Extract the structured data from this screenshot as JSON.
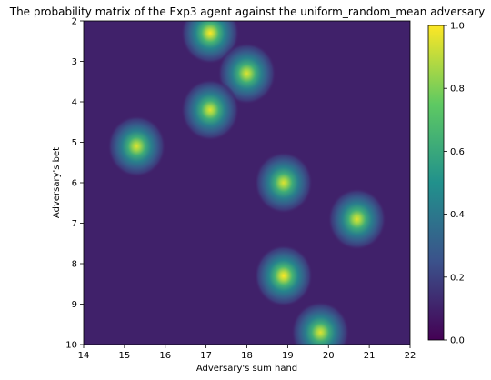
{
  "chart_data": {
    "type": "heatmap",
    "title": "The probability matrix of the Exp3 agent against the uniform_random_mean adversary",
    "xlabel": "Adversary's sum hand",
    "ylabel": "Adversary's bet",
    "xlim": [
      14,
      22
    ],
    "ylim": [
      10,
      2
    ],
    "x_ticks": [
      14,
      15,
      16,
      17,
      18,
      19,
      20,
      21,
      22
    ],
    "y_ticks": [
      2,
      3,
      4,
      5,
      6,
      7,
      8,
      9,
      10
    ],
    "colorbar": {
      "min": 0.0,
      "max": 1.0,
      "ticks": [
        "0.0",
        "0.2",
        "0.4",
        "0.6",
        "0.8",
        "1.0"
      ]
    },
    "colormap": [
      "#440154",
      "#3b528b",
      "#21918c",
      "#5ec962",
      "#fde725"
    ],
    "background_value": 0.1,
    "peaks": [
      {
        "x": 17.1,
        "y": 2.3,
        "value": 1.0
      },
      {
        "x": 18.0,
        "y": 3.3,
        "value": 0.95
      },
      {
        "x": 17.1,
        "y": 4.2,
        "value": 0.95
      },
      {
        "x": 15.3,
        "y": 5.1,
        "value": 0.95
      },
      {
        "x": 18.9,
        "y": 6.0,
        "value": 0.95
      },
      {
        "x": 20.7,
        "y": 6.9,
        "value": 0.95
      },
      {
        "x": 18.9,
        "y": 8.3,
        "value": 1.0
      },
      {
        "x": 19.8,
        "y": 9.7,
        "value": 0.95
      }
    ]
  }
}
